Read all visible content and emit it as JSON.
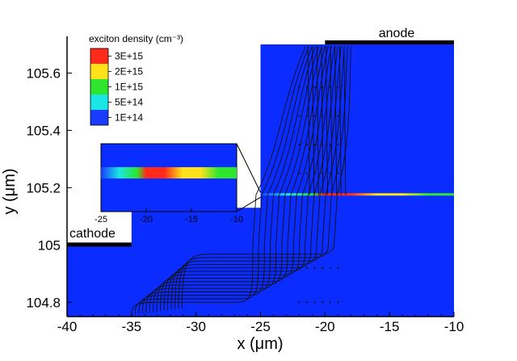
{
  "chart_data": {
    "type": "heatmap",
    "title": "",
    "xlabel": "x (μm)",
    "ylabel": "y (μm)",
    "xlim": [
      -40,
      -10
    ],
    "ylim": [
      104.75,
      105.7
    ],
    "x_ticks": [
      -40,
      -35,
      -30,
      -25,
      -20,
      -15,
      -10
    ],
    "y_ticks": [
      104.8,
      105,
      105.2,
      105.4,
      105.6
    ],
    "x_tick_labels": [
      "-40",
      "-35",
      "-30",
      "-25",
      "-20",
      "-15",
      "-10"
    ],
    "y_tick_labels": [
      "104.8",
      "105",
      "105.2",
      "105.4",
      "105.6"
    ],
    "legend": {
      "title": "exciton density (cm⁻³)",
      "placement": "top-left",
      "levels": [
        {
          "label": "3E+15",
          "value": 3000000000000000.0,
          "color": "#ff2a1a"
        },
        {
          "label": "2E+15",
          "value": 2000000000000000.0,
          "color": "#ffe21a"
        },
        {
          "label": "1E+15",
          "value": 1000000000000000.0,
          "color": "#2ee62e"
        },
        {
          "label": "5E+14",
          "value": 500000000000000.0,
          "color": "#1ae6e6"
        },
        {
          "label": "1E+14",
          "value": 100000000000000.0,
          "color": "#1a3cff"
        }
      ]
    },
    "background_color": "#0a2cff",
    "electrodes": [
      {
        "name": "cathode",
        "label": "cathode",
        "x_range": [
          -40,
          -35
        ],
        "y": 105.0
      },
      {
        "name": "anode",
        "label": "anode",
        "x_range": [
          -20,
          -10
        ],
        "y": 105.7
      }
    ],
    "device_region": {
      "step_x": -25,
      "step_top_y": 105.7,
      "cathode_top_y": 105.0
    },
    "recombination_zone": {
      "y": 105.175,
      "x_range": [
        -25,
        -10
      ],
      "profile": [
        {
          "x": -25,
          "density": 100000000000000.0
        },
        {
          "x": -23,
          "density": 500000000000000.0
        },
        {
          "x": -21,
          "density": 1000000000000000.0
        },
        {
          "x": -20,
          "density": 2500000000000000.0
        },
        {
          "x": -18,
          "density": 3000000000000000.0
        },
        {
          "x": -16,
          "density": 2000000000000000.0
        },
        {
          "x": -14,
          "density": 1500000000000000.0
        },
        {
          "x": -12,
          "density": 1000000000000000.0
        },
        {
          "x": -10,
          "density": 800000000000000.0
        }
      ]
    },
    "inset": {
      "x_ticks": [
        -25,
        -20,
        -15,
        -10
      ],
      "x_tick_labels": [
        "-25",
        "-20",
        "-15",
        "-10"
      ],
      "xlim": [
        -25,
        -10
      ]
    }
  }
}
